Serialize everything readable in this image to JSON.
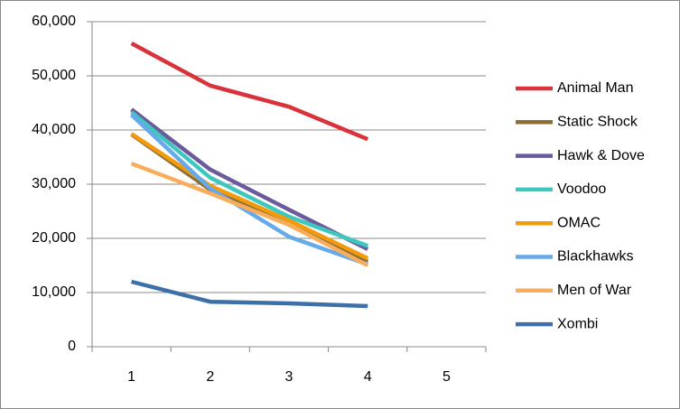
{
  "chart_data": {
    "type": "line",
    "categories": [
      "1",
      "2",
      "3",
      "4",
      "5"
    ],
    "series": [
      {
        "name": "Animal Man",
        "color": "#d9323a",
        "values": [
          56000,
          48200,
          44300,
          38300,
          null
        ]
      },
      {
        "name": "Static Shock",
        "color": "#8c6d35",
        "values": [
          39200,
          29000,
          22500,
          15700,
          null
        ]
      },
      {
        "name": "Hawk & Dove",
        "color": "#6b5a9c",
        "values": [
          43800,
          32700,
          25300,
          18000,
          null
        ]
      },
      {
        "name": "Voodoo",
        "color": "#3cc8bf",
        "values": [
          43300,
          31200,
          24000,
          18600,
          null
        ]
      },
      {
        "name": "OMAC",
        "color": "#f29b0c",
        "values": [
          39300,
          29700,
          23300,
          16300,
          null
        ]
      },
      {
        "name": "Blackhawks",
        "color": "#66aaea",
        "values": [
          42800,
          29200,
          20300,
          15200,
          null
        ]
      },
      {
        "name": "Men of War",
        "color": "#f8ad5c",
        "values": [
          33800,
          28300,
          22500,
          15000,
          null
        ]
      },
      {
        "name": "Xombi",
        "color": "#3d6fa8",
        "values": [
          12000,
          8300,
          8000,
          7500,
          null
        ]
      }
    ],
    "ylim": [
      0,
      60000
    ],
    "yticks": [
      0,
      {
        "value": 10000,
        "label": "10,000"
      },
      {
        "value": 20000,
        "label": "20,000"
      },
      {
        "value": 30000,
        "label": "30,000"
      },
      {
        "value": 40000,
        "label": "40,000"
      },
      {
        "value": 50000,
        "label": "50,000"
      },
      {
        "value": 60000,
        "label": "60,000"
      }
    ],
    "grid": true,
    "legend": "right"
  }
}
